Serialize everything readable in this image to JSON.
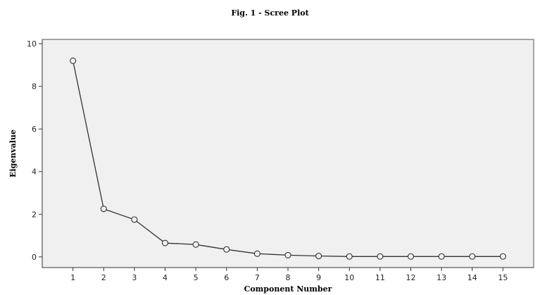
{
  "chart_data": {
    "type": "line",
    "title": "Fig. 1 - Scree Plot",
    "xlabel": "Component Number",
    "ylabel": "Eigenvalue",
    "x": [
      1,
      2,
      3,
      4,
      5,
      6,
      7,
      8,
      9,
      10,
      11,
      12,
      13,
      14,
      15
    ],
    "y": [
      9.2,
      2.25,
      1.75,
      0.65,
      0.58,
      0.35,
      0.15,
      0.08,
      0.04,
      0.02,
      0.02,
      0.02,
      0.02,
      0.02,
      0.02
    ],
    "xticks": [
      1,
      2,
      3,
      4,
      5,
      6,
      7,
      8,
      9,
      10,
      11,
      12,
      13,
      14,
      15
    ],
    "yticks": [
      0,
      2,
      4,
      6,
      8,
      10
    ],
    "ylim": [
      -0.5,
      10.2
    ],
    "xlim": [
      0,
      16
    ],
    "grid": false,
    "legend": "none",
    "colors": {
      "plot_background": "#f0f0f0",
      "line": "#333333",
      "marker_fill": "#f0f0f0"
    }
  }
}
